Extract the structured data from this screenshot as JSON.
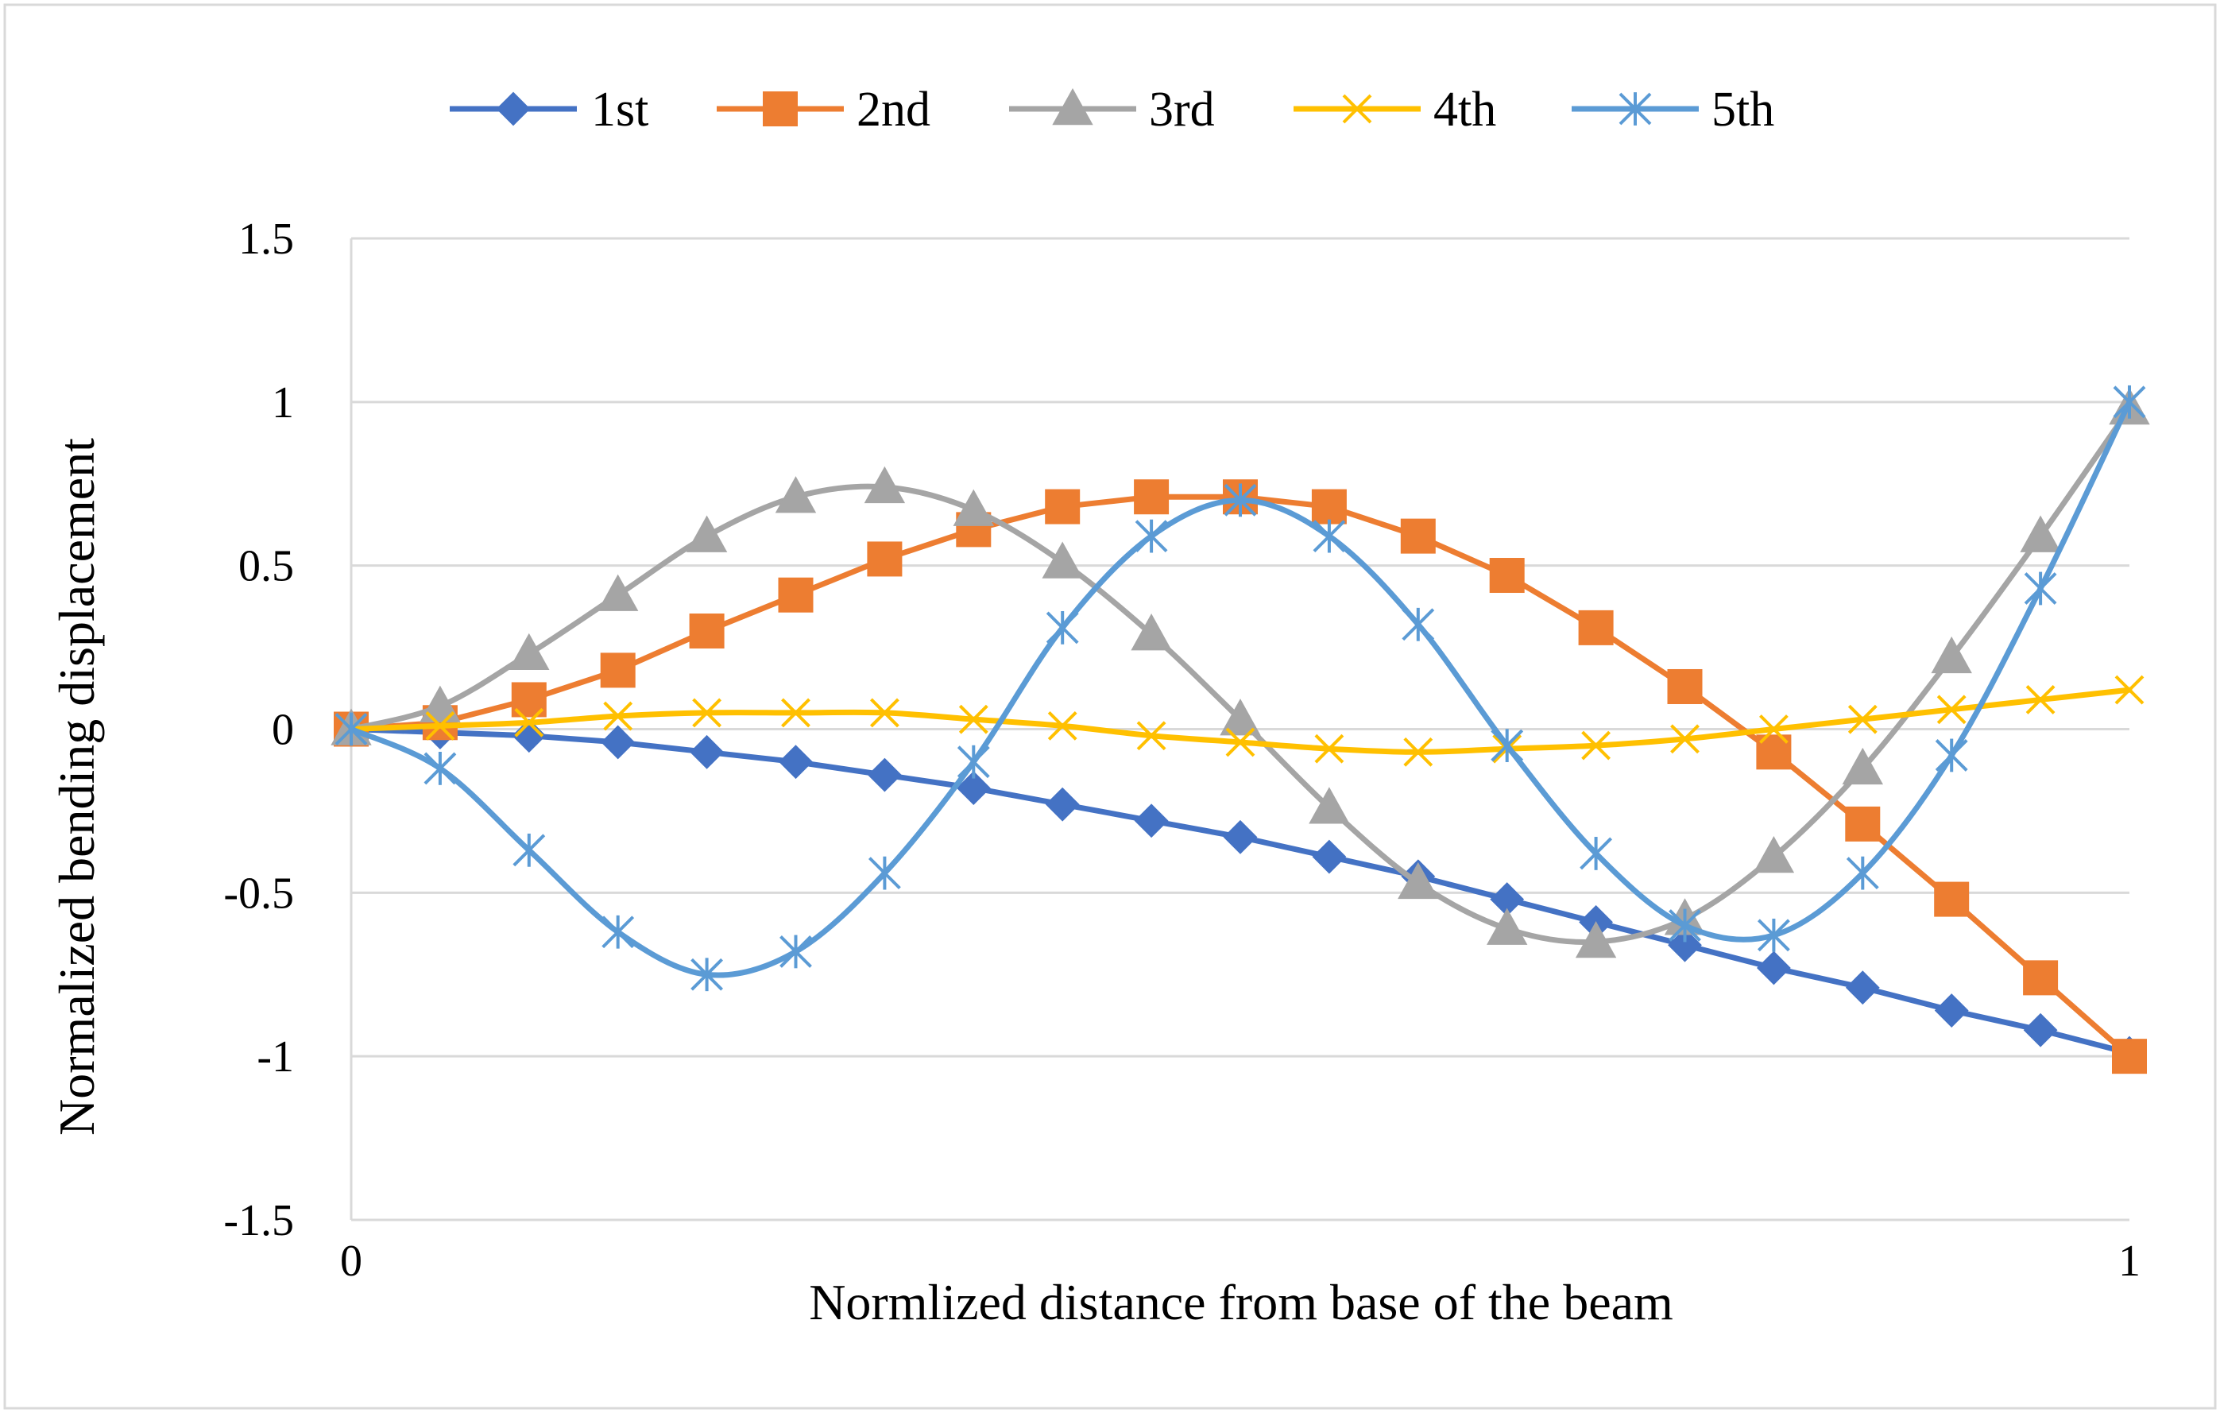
{
  "chart_data": {
    "type": "line",
    "title": "",
    "xlabel": "Normlized distance from base of the beam",
    "ylabel": "Normalized bending displacement",
    "xlim": [
      0,
      1
    ],
    "ylim": [
      -1.5,
      1.5
    ],
    "grid": true,
    "legend_position": "top",
    "x_ticks": [
      {
        "value": 0,
        "label": "0"
      },
      {
        "value": 1,
        "label": "1"
      }
    ],
    "y_ticks": [
      {
        "value": 1.5,
        "label": "1.5"
      },
      {
        "value": 1,
        "label": "1"
      },
      {
        "value": 0.5,
        "label": "0.5"
      },
      {
        "value": 0,
        "label": "0"
      },
      {
        "value": -0.5,
        "label": "-0.5"
      },
      {
        "value": -1,
        "label": "-1"
      },
      {
        "value": -1.5,
        "label": "-1.5"
      }
    ],
    "x": [
      0,
      0.05,
      0.1,
      0.15,
      0.2,
      0.25,
      0.3,
      0.35,
      0.4,
      0.45,
      0.5,
      0.55,
      0.6,
      0.65,
      0.7,
      0.75,
      0.8,
      0.85,
      0.9,
      0.95,
      1.0
    ],
    "series": [
      {
        "name": "1st",
        "color": "#4472C4",
        "marker": "diamond",
        "values": [
          0,
          -0.01,
          -0.02,
          -0.04,
          -0.07,
          -0.1,
          -0.14,
          -0.18,
          -0.23,
          -0.28,
          -0.33,
          -0.39,
          -0.45,
          -0.52,
          -0.59,
          -0.66,
          -0.73,
          -0.79,
          -0.86,
          -0.92,
          -0.99
        ]
      },
      {
        "name": "2nd",
        "color": "#ED7D31",
        "marker": "square",
        "values": [
          0,
          0.02,
          0.09,
          0.18,
          0.3,
          0.41,
          0.52,
          0.61,
          0.68,
          0.71,
          0.71,
          0.68,
          0.59,
          0.47,
          0.31,
          0.13,
          -0.07,
          -0.29,
          -0.52,
          -0.76,
          -1.0
        ]
      },
      {
        "name": "3rd",
        "color": "#A5A5A5",
        "marker": "triangle",
        "values": [
          0,
          0.07,
          0.23,
          0.41,
          0.59,
          0.71,
          0.74,
          0.67,
          0.51,
          0.29,
          0.03,
          -0.24,
          -0.47,
          -0.61,
          -0.65,
          -0.58,
          -0.39,
          -0.12,
          0.22,
          0.59,
          0.98
        ]
      },
      {
        "name": "4th",
        "color": "#FFC000",
        "marker": "x",
        "values": [
          0,
          0.01,
          0.02,
          0.04,
          0.05,
          0.05,
          0.05,
          0.03,
          0.01,
          -0.02,
          -0.04,
          -0.06,
          -0.07,
          -0.06,
          -0.05,
          -0.03,
          0.0,
          0.03,
          0.06,
          0.09,
          0.12
        ]
      },
      {
        "name": "5th",
        "color": "#5B9BD5",
        "marker": "asterisk",
        "values": [
          0,
          -0.12,
          -0.37,
          -0.62,
          -0.75,
          -0.68,
          -0.44,
          -0.1,
          0.31,
          0.59,
          0.7,
          0.59,
          0.32,
          -0.05,
          -0.38,
          -0.6,
          -0.63,
          -0.44,
          -0.08,
          0.43,
          1.0
        ]
      }
    ]
  }
}
